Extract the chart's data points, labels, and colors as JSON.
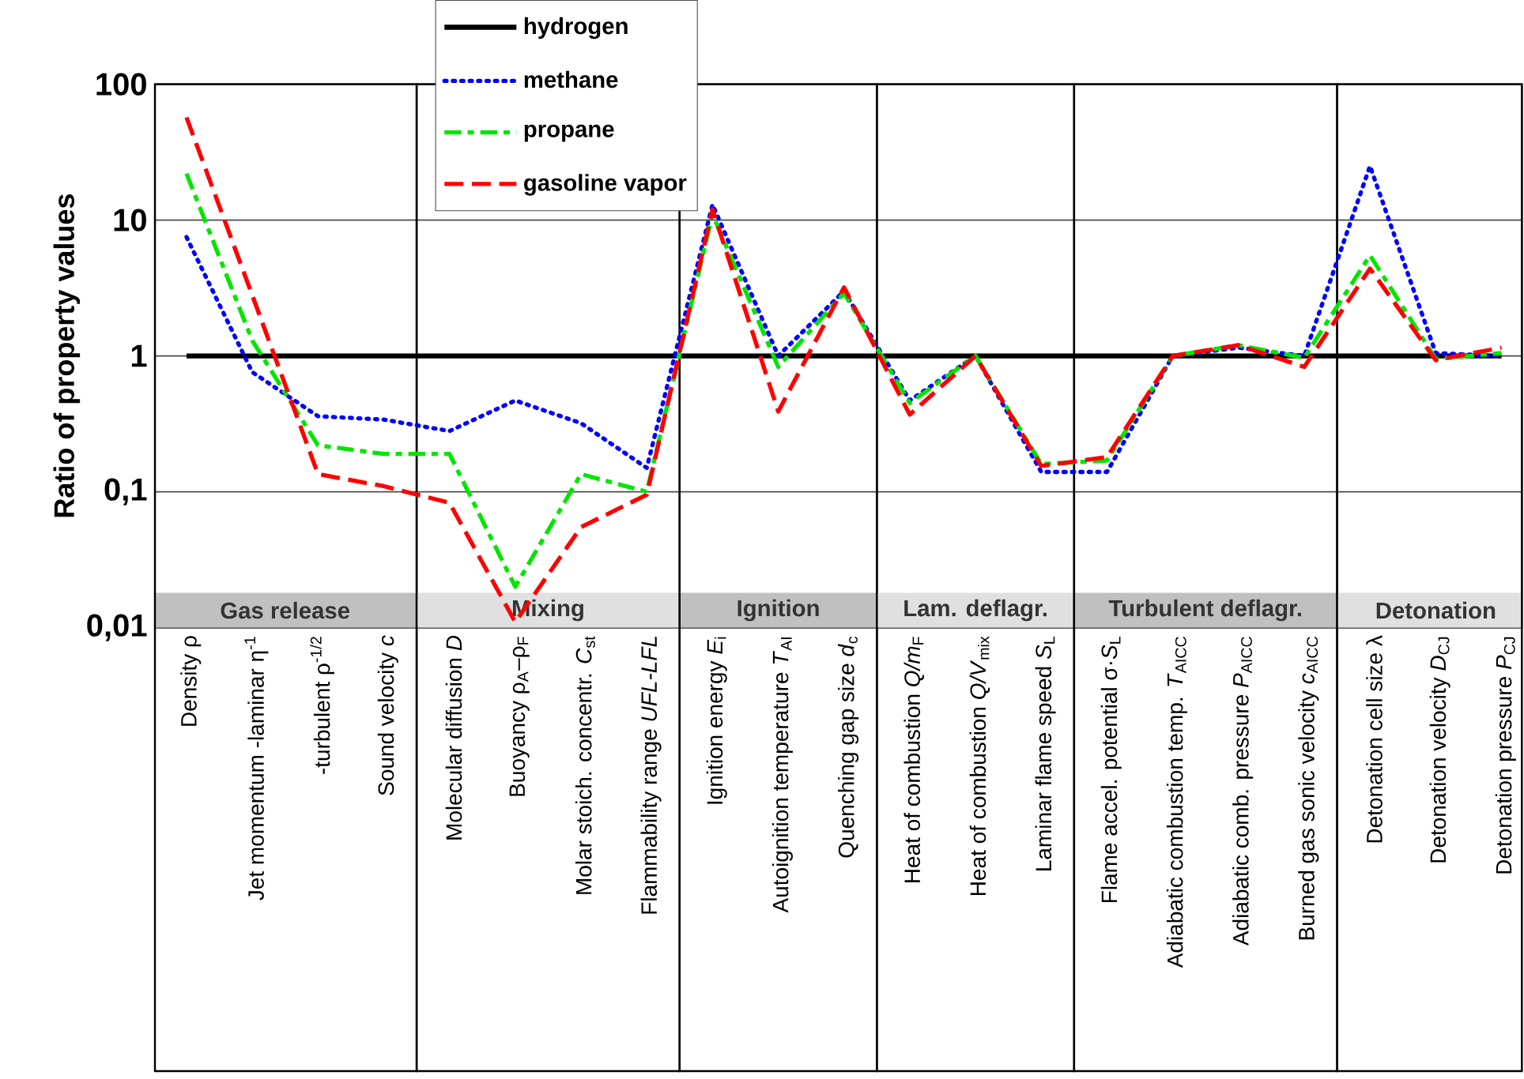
{
  "chart_data": {
    "type": "line",
    "ylabel": "Ratio of property values",
    "categories": [
      "Density ρ",
      "Jet momentum -laminar η$^{-1}$",
      "-turbulent ρ$^{-1/2}$",
      "Sound velocity *c*",
      "Molecular diffusion *D*",
      "Buoyancy ρ$_{A}$–ρ$_{F}$",
      "Molar stoich. concentr. *C*$_{st}$",
      "Flammability range *UFL-LFL*",
      "Ignition energy *E*$_{i}$",
      "Autoignition temperature *T*$_{AI}$",
      "Quenching gap size *d*$_{c}$",
      "Heat of combustion *Q/m*$_{F}$",
      "Heat of combustion *Q/V*$_{mix}$",
      "Laminar flame speed *S*$_{L}$",
      "Flame accel. potential σ·*S*$_{L}$",
      "Adiabatic combustion temp. *T*$_{AICC}$",
      "Adiabatic comb. pressure *P*$_{AICC}$",
      "Burned gas sonic velocity *c*$_{AICC}$",
      "Detonation cell size λ",
      "Detonation velocity *D*$_{CJ}$",
      "Detonation pressure *P*$_{CJ}$"
    ],
    "series": [
      {
        "name": "hydrogen",
        "color": "#000000",
        "line_style": "solid",
        "values": [
          1,
          1,
          1,
          1,
          1,
          1,
          1,
          1,
          1,
          1,
          1,
          1,
          1,
          1,
          1,
          1,
          1,
          1,
          1,
          1,
          1
        ]
      },
      {
        "name": "methane",
        "color": "#0000ff",
        "line_style": "dotted",
        "values": [
          7.5,
          0.76,
          0.36,
          0.34,
          0.28,
          0.47,
          0.32,
          0.15,
          13,
          1.0,
          3.0,
          0.47,
          1.0,
          0.14,
          0.14,
          1.0,
          1.15,
          1.0,
          25,
          1.05,
          1.0
        ]
      },
      {
        "name": "propane",
        "color": "#00e600",
        "line_style": "dashdot",
        "values": [
          22,
          1.3,
          0.22,
          0.19,
          0.19,
          0.02,
          0.135,
          0.1,
          11,
          0.83,
          2.9,
          0.45,
          1.0,
          0.16,
          0.17,
          1.0,
          1.2,
          0.97,
          5.5,
          0.95,
          1.05
        ]
      },
      {
        "name": "gasoline vapor",
        "color": "#ff0000",
        "line_style": "dashed",
        "values": [
          57,
          2.8,
          0.135,
          0.11,
          0.083,
          0.011,
          0.055,
          0.095,
          12,
          0.39,
          3.2,
          0.37,
          1.0,
          0.155,
          0.18,
          1.0,
          1.2,
          0.83,
          4.4,
          0.93,
          1.15
        ]
      }
    ],
    "log": "y",
    "ylim": [
      0.01,
      100
    ],
    "yticks": [
      {
        "value": 0.01,
        "label": "0,01"
      },
      {
        "value": 0.1,
        "label": "0,1"
      },
      1,
      10,
      100
    ],
    "grid": "y",
    "legend": "top",
    "bands": [
      {
        "axis": "x",
        "from": "Density ρ",
        "to": "Sound velocity *c*",
        "label": "Gas release",
        "color": "#c0c0c0"
      },
      {
        "axis": "x",
        "from": "Molecular diffusion *D*",
        "to": "Flammability range *UFL-LFL*",
        "label": "Mixing",
        "color": "#e0e0e0"
      },
      {
        "axis": "x",
        "from": "Ignition energy *E*$_{i}$",
        "to": "Quenching gap size *d*$_{c}$",
        "label": "Ignition",
        "color": "#c0c0c0"
      },
      {
        "axis": "x",
        "from": "Heat of combustion *Q/m*$_{F}$",
        "to": "Laminar flame speed *S*$_{L}$",
        "label": "Lam. deflagr.",
        "color": "#e0e0e0"
      },
      {
        "axis": "x",
        "from": "Flame accel. potential σ·*S*$_{L}$",
        "to": "Burned gas sonic velocity *c*$_{AICC}$",
        "label": "Turbulent deflagr.",
        "color": "#c0c0c0"
      },
      {
        "axis": "x",
        "from": "Detonation cell size λ",
        "to": "Detonation pressure *P*$_{CJ}$",
        "label": "Detonation",
        "color": "#e0e0e0"
      }
    ]
  }
}
